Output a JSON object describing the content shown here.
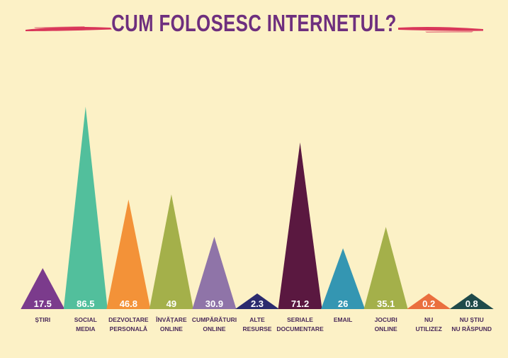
{
  "colors": {
    "background": "#fcf1c6",
    "title": "#6e2f7e",
    "brush": "#d9375a",
    "label": "#4a2a5a"
  },
  "chart_data": {
    "type": "bar",
    "title": "CUM  FOLOSESC INTERNETUL?",
    "xlabel": "",
    "ylabel": "",
    "ylim": [
      0,
      100
    ],
    "grid": false,
    "legend": "none",
    "categories": [
      [
        "ȘTIRI"
      ],
      [
        "SOCIAL",
        "MEDIA"
      ],
      [
        "DEZVOLTARE",
        "PERSONALĂ"
      ],
      [
        "ÎNVĂȚARE",
        "ONLINE"
      ],
      [
        "CUMPĂRĂTURI",
        "ONLINE"
      ],
      [
        "ALTE",
        "RESURSE"
      ],
      [
        "SERIALE",
        "DOCUMENTARE"
      ],
      [
        "EMAIL"
      ],
      [
        "JOCURI",
        "ONLINE"
      ],
      [
        "NU",
        "UTILIZEZ"
      ],
      [
        "NU ȘTIU",
        "NU RĂSPUND"
      ]
    ],
    "values": [
      17.5,
      86.5,
      46.8,
      49,
      30.9,
      2.3,
      71.2,
      26,
      35.1,
      0.2,
      0.8
    ],
    "value_labels": [
      "17.5",
      "86.5",
      "46.8",
      "49",
      "30.9",
      "2.3",
      "71.2",
      "26",
      "35.1",
      "0.2",
      "0.8"
    ],
    "colors": [
      "#7b3b8c",
      "#52bf9c",
      "#f39238",
      "#a4b04a",
      "#8f74a8",
      "#2b2b6e",
      "#5a1840",
      "#3496b2",
      "#a4b04a",
      "#ea6f3e",
      "#1f4a4a"
    ]
  }
}
